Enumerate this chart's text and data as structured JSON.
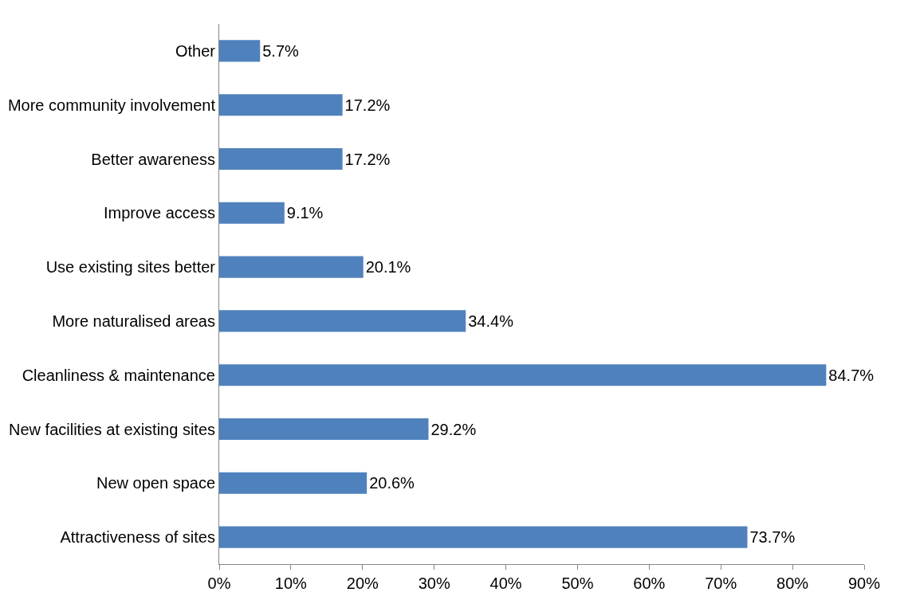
{
  "chart_data": {
    "type": "bar",
    "orientation": "horizontal",
    "categories": [
      "Other",
      "More community involvement",
      "Better awareness",
      "Improve access",
      "Use existing sites better",
      "More naturalised areas",
      "Cleanliness & maintenance",
      "New facilities at existing sites",
      "New open space",
      "Attractiveness of sites"
    ],
    "values": [
      5.7,
      17.2,
      17.2,
      9.1,
      20.1,
      34.4,
      84.7,
      29.2,
      20.6,
      73.7
    ],
    "value_labels": [
      "5.7%",
      "17.2%",
      "17.2%",
      "9.1%",
      "20.1%",
      "34.4%",
      "84.7%",
      "29.2%",
      "20.6%",
      "73.7%"
    ],
    "color": "#4f81bd",
    "xlim": [
      0,
      90
    ],
    "xticks": [
      {
        "value": 0,
        "label": "0%"
      },
      {
        "value": 10,
        "label": "10%"
      },
      {
        "value": 20,
        "label": "20%"
      },
      {
        "value": 30,
        "label": "30%"
      },
      {
        "value": 40,
        "label": "40%"
      },
      {
        "value": 50,
        "label": "50%"
      },
      {
        "value": 60,
        "label": "60%"
      },
      {
        "value": 70,
        "label": "70%"
      },
      {
        "value": 80,
        "label": "80%"
      },
      {
        "value": 90,
        "label": "90%"
      }
    ],
    "grid": false
  }
}
